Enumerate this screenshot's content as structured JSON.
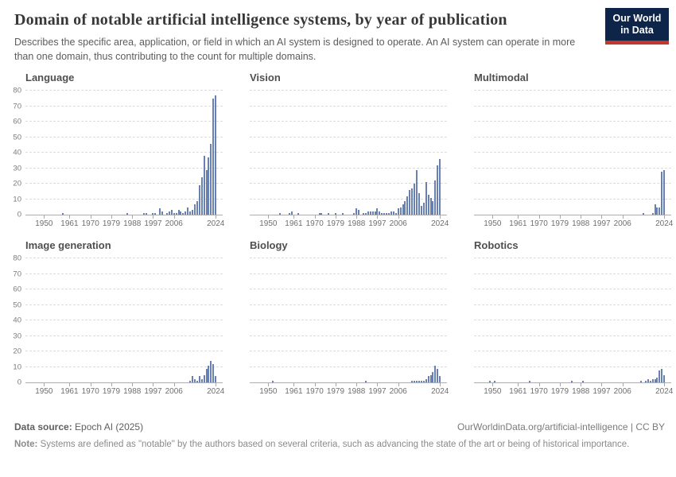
{
  "header": {
    "title": "Domain of notable artificial intelligence systems, by year of publication",
    "subtitle": "Describes the specific area, application, or field in which an AI system is designed to operate. An AI system can operate in more than one domain, thus contributing to the count for multiple domains.",
    "logo": {
      "line1": "Our World",
      "line2": "in Data"
    }
  },
  "colors": {
    "bar": "#6880b2",
    "gridline": "#dcdcdc",
    "axis": "#adadad",
    "logo_bg": "#0e2449",
    "logo_red": "#c0392e",
    "title_text": "#383838",
    "muted_text": "#6f6f6f"
  },
  "axis": {
    "x_ticks": [
      1950,
      1961,
      1970,
      1979,
      1988,
      1997,
      2006,
      2024
    ],
    "y_ticks": [
      0,
      10,
      20,
      30,
      40,
      50,
      60,
      70,
      80
    ],
    "x_range": [
      1942,
      2027
    ],
    "ylim": [
      0,
      80
    ],
    "grid": true
  },
  "chart_data": [
    {
      "type": "bar",
      "title": "Language",
      "show_y_labels": true,
      "xlabel": "",
      "ylabel": "",
      "series": [
        [
          1958,
          1
        ],
        [
          1986,
          1
        ],
        [
          1993,
          1
        ],
        [
          1994,
          1
        ],
        [
          1997,
          1
        ],
        [
          1998,
          1
        ],
        [
          2000,
          4
        ],
        [
          2001,
          2
        ],
        [
          2003,
          1
        ],
        [
          2004,
          2
        ],
        [
          2005,
          3
        ],
        [
          2006,
          1
        ],
        [
          2007,
          1
        ],
        [
          2008,
          3
        ],
        [
          2009,
          2
        ],
        [
          2010,
          1
        ],
        [
          2011,
          2
        ],
        [
          2012,
          5
        ],
        [
          2013,
          2
        ],
        [
          2014,
          3
        ],
        [
          2015,
          7
        ],
        [
          2016,
          9
        ],
        [
          2017,
          19
        ],
        [
          2018,
          24
        ],
        [
          2019,
          38
        ],
        [
          2020,
          29
        ],
        [
          2021,
          37
        ],
        [
          2022,
          46
        ],
        [
          2023,
          75
        ],
        [
          2024,
          77
        ]
      ]
    },
    {
      "type": "bar",
      "title": "Vision",
      "show_y_labels": false,
      "xlabel": "",
      "ylabel": "",
      "series": [
        [
          1955,
          1
        ],
        [
          1959,
          1
        ],
        [
          1960,
          2
        ],
        [
          1963,
          1
        ],
        [
          1972,
          1
        ],
        [
          1973,
          1
        ],
        [
          1976,
          1
        ],
        [
          1979,
          1
        ],
        [
          1982,
          1
        ],
        [
          1987,
          1
        ],
        [
          1988,
          4
        ],
        [
          1989,
          3
        ],
        [
          1991,
          1
        ],
        [
          1992,
          1
        ],
        [
          1993,
          2
        ],
        [
          1994,
          2
        ],
        [
          1995,
          2
        ],
        [
          1996,
          2
        ],
        [
          1997,
          4
        ],
        [
          1998,
          2
        ],
        [
          1999,
          1
        ],
        [
          2000,
          1
        ],
        [
          2001,
          1
        ],
        [
          2002,
          1
        ],
        [
          2003,
          2
        ],
        [
          2004,
          2
        ],
        [
          2005,
          1
        ],
        [
          2006,
          4
        ],
        [
          2007,
          5
        ],
        [
          2008,
          7
        ],
        [
          2009,
          9
        ],
        [
          2010,
          12
        ],
        [
          2011,
          16
        ],
        [
          2012,
          17
        ],
        [
          2013,
          20
        ],
        [
          2014,
          29
        ],
        [
          2015,
          14
        ],
        [
          2016,
          6
        ],
        [
          2017,
          8
        ],
        [
          2018,
          21
        ],
        [
          2019,
          13
        ],
        [
          2020,
          11
        ],
        [
          2021,
          9
        ],
        [
          2022,
          22
        ],
        [
          2023,
          32
        ],
        [
          2024,
          36
        ]
      ]
    },
    {
      "type": "bar",
      "title": "Multimodal",
      "show_y_labels": false,
      "xlabel": "",
      "ylabel": "",
      "series": [
        [
          2015,
          1
        ],
        [
          2019,
          1
        ],
        [
          2020,
          7
        ],
        [
          2021,
          5
        ],
        [
          2022,
          5
        ],
        [
          2023,
          28
        ],
        [
          2024,
          29
        ]
      ]
    },
    {
      "type": "bar",
      "title": "Image generation",
      "show_y_labels": true,
      "xlabel": "",
      "ylabel": "",
      "series": [
        [
          2013,
          1
        ],
        [
          2014,
          4
        ],
        [
          2015,
          2
        ],
        [
          2016,
          1
        ],
        [
          2017,
          4
        ],
        [
          2018,
          2
        ],
        [
          2019,
          5
        ],
        [
          2020,
          9
        ],
        [
          2021,
          11
        ],
        [
          2022,
          14
        ],
        [
          2023,
          12
        ],
        [
          2024,
          4
        ]
      ]
    },
    {
      "type": "bar",
      "title": "Biology",
      "show_y_labels": false,
      "xlabel": "",
      "ylabel": "",
      "series": [
        [
          1952,
          1
        ],
        [
          1992,
          1
        ],
        [
          2012,
          1
        ],
        [
          2013,
          1
        ],
        [
          2014,
          1
        ],
        [
          2015,
          1
        ],
        [
          2016,
          1
        ],
        [
          2017,
          1
        ],
        [
          2018,
          2
        ],
        [
          2019,
          4
        ],
        [
          2020,
          5
        ],
        [
          2021,
          7
        ],
        [
          2022,
          11
        ],
        [
          2023,
          9
        ],
        [
          2024,
          4
        ]
      ]
    },
    {
      "type": "bar",
      "title": "Robotics",
      "show_y_labels": false,
      "xlabel": "",
      "ylabel": "",
      "series": [
        [
          1949,
          1
        ],
        [
          1951,
          1
        ],
        [
          1966,
          1
        ],
        [
          1984,
          1
        ],
        [
          1989,
          1
        ],
        [
          2014,
          1
        ],
        [
          2016,
          1
        ],
        [
          2017,
          2
        ],
        [
          2018,
          1
        ],
        [
          2019,
          2
        ],
        [
          2020,
          2
        ],
        [
          2021,
          3
        ],
        [
          2022,
          8
        ],
        [
          2023,
          9
        ],
        [
          2024,
          5
        ]
      ]
    }
  ],
  "footer": {
    "source_label": "Data source:",
    "source_value": " Epoch AI (2025)",
    "credit": "OurWorldinData.org/artificial-intelligence | CC BY",
    "note_label": "Note:",
    "note_value": " Systems are defined as \"notable\" by the authors based on several criteria, such as advancing the state of the art or being of historical importance."
  }
}
